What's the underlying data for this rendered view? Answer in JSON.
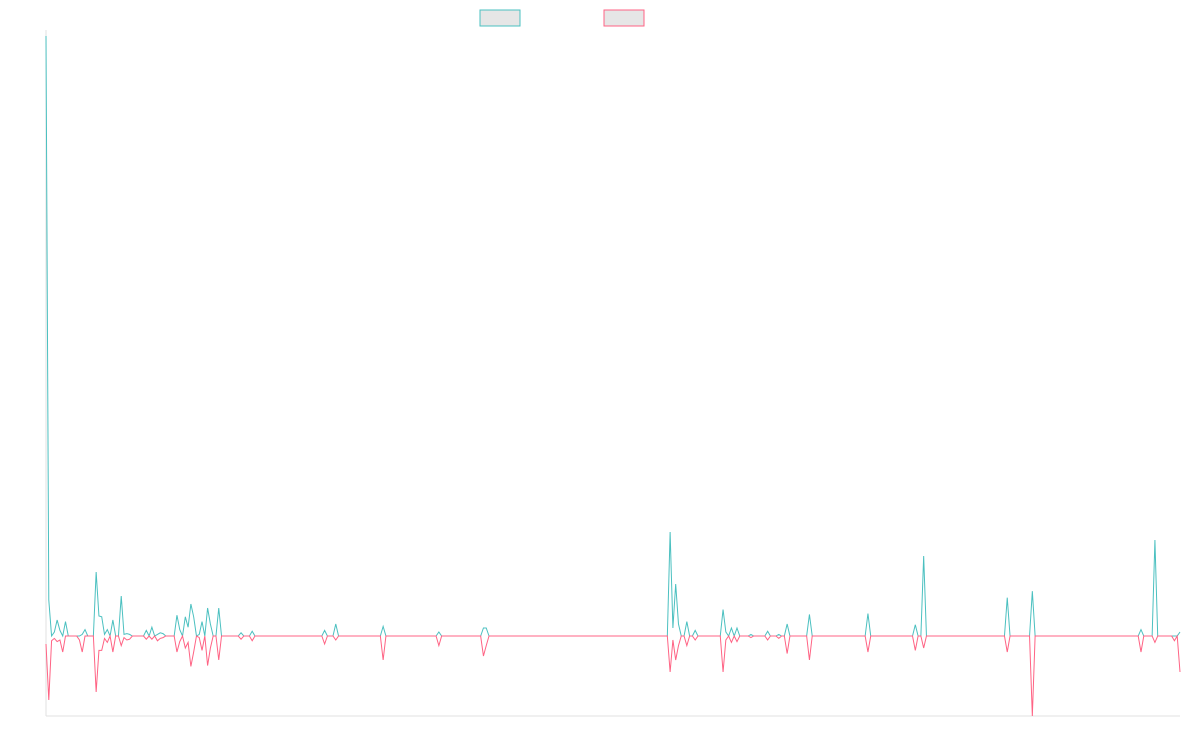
{
  "chart_data": {
    "type": "line",
    "title": "",
    "xlabel": "",
    "ylabel": "",
    "grid": false,
    "legend": "top-center",
    "ylim": [
      -1.0,
      7.5
    ],
    "series": [
      {
        "color": "#4bc0c0",
        "fill": "#e6e6e6",
        "values": [
          7.5,
          0.45,
          0.0,
          0.05,
          0.2,
          0.07,
          0.0,
          0.18,
          0.0,
          0.0,
          0.0,
          0.0,
          0.0,
          0.02,
          0.08,
          0.0,
          0.0,
          0.0,
          0.8,
          0.25,
          0.24,
          0.02,
          0.08,
          0.0,
          0.2,
          0.0,
          0.0,
          0.5,
          0.02,
          0.03,
          0.02,
          0.0,
          0.0,
          0.0,
          0.0,
          0.0,
          0.07,
          0.0,
          0.11,
          0.0,
          0.02,
          0.04,
          0.03,
          0.0,
          0.0,
          0.0,
          0.0,
          0.26,
          0.08,
          0.0,
          0.24,
          0.11,
          0.4,
          0.24,
          0.0,
          0.02,
          0.18,
          0.0,
          0.35,
          0.15,
          0.0,
          0.0,
          0.35,
          0.0,
          0.0,
          0.0,
          0.0,
          0.0,
          0.0,
          0.0,
          0.04,
          0.0,
          0.0,
          0.0,
          0.06,
          0.0,
          0.0,
          0.0,
          0.0,
          0.0,
          0.0,
          0.0,
          0.0,
          0.0,
          0.0,
          0.0,
          0.0,
          0.0,
          0.0,
          0.0,
          0.0,
          0.0,
          0.0,
          0.0,
          0.0,
          0.0,
          0.0,
          0.0,
          0.0,
          0.0,
          0.07,
          0.0,
          0.0,
          0.0,
          0.15,
          0.0,
          0.0,
          0.0,
          0.0,
          0.0,
          0.0,
          0.0,
          0.0,
          0.0,
          0.0,
          0.0,
          0.0,
          0.0,
          0.0,
          0.0,
          0.0,
          0.12,
          0.0,
          0.0,
          0.0,
          0.0,
          0.0,
          0.0,
          0.0,
          0.0,
          0.0,
          0.0,
          0.0,
          0.0,
          0.0,
          0.0,
          0.0,
          0.0,
          0.0,
          0.0,
          0.0,
          0.05,
          0.0,
          0.0,
          0.0,
          0.0,
          0.0,
          0.0,
          0.0,
          0.0,
          0.0,
          0.0,
          0.0,
          0.0,
          0.0,
          0.0,
          0.0,
          0.1,
          0.1,
          0.0,
          0.0,
          0.0,
          0.0,
          0.0,
          0.0,
          0.0,
          0.0,
          0.0,
          0.0,
          0.0,
          0.0,
          0.0,
          0.0,
          0.0,
          0.0,
          0.0,
          0.0,
          0.0,
          0.0,
          0.0,
          0.0,
          0.0,
          0.0,
          0.0,
          0.0,
          0.0,
          0.0,
          0.0,
          0.0,
          0.0,
          0.0,
          0.0,
          0.0,
          0.0,
          0.0,
          0.0,
          0.0,
          0.0,
          0.0,
          0.0,
          0.0,
          0.0,
          0.0,
          0.0,
          0.0,
          0.0,
          0.0,
          0.0,
          0.0,
          0.0,
          0.0,
          0.0,
          0.0,
          0.0,
          0.0,
          0.0,
          0.0,
          0.0,
          0.0,
          0.0,
          0.0,
          0.0,
          0.0,
          0.0,
          1.3,
          0.1,
          0.65,
          0.15,
          0.0,
          0.0,
          0.18,
          0.0,
          0.0,
          0.07,
          0.0,
          0.0,
          0.0,
          0.0,
          0.0,
          0.0,
          0.0,
          0.0,
          0.0,
          0.33,
          0.05,
          0.0,
          0.1,
          0.0,
          0.1,
          0.0,
          0.0,
          0.0,
          0.0,
          0.02,
          0.0,
          0.0,
          0.0,
          0.0,
          0.0,
          0.06,
          0.0,
          0.0,
          0.0,
          0.02,
          0.0,
          0.0,
          0.15,
          0.0,
          0.0,
          0.0,
          0.0,
          0.0,
          0.0,
          0.0,
          0.27,
          0.0,
          0.0,
          0.0,
          0.0,
          0.0,
          0.0,
          0.0,
          0.0,
          0.0,
          0.0,
          0.0,
          0.0,
          0.0,
          0.0,
          0.0,
          0.0,
          0.0,
          0.0,
          0.0,
          0.0,
          0.28,
          0.0,
          0.0,
          0.0,
          0.0,
          0.0,
          0.0,
          0.0,
          0.0,
          0.0,
          0.0,
          0.0,
          0.0,
          0.0,
          0.0,
          0.0,
          0.0,
          0.14,
          0.0,
          0.0,
          1.0,
          0.0,
          0.0,
          0.0,
          0.0,
          0.0,
          0.0,
          0.0,
          0.0,
          0.0,
          0.0,
          0.0,
          0.0,
          0.0,
          0.0,
          0.0,
          0.0,
          0.0,
          0.0,
          0.0,
          0.0,
          0.0,
          0.0,
          0.0,
          0.0,
          0.0,
          0.0,
          0.0,
          0.0,
          0.0,
          0.48,
          0.0,
          0.0,
          0.0,
          0.0,
          0.0,
          0.0,
          0.0,
          0.0,
          0.56,
          0.0,
          0.0,
          0.0,
          0.0,
          0.0,
          0.0,
          0.0,
          0.0,
          0.0,
          0.0,
          0.0,
          0.0,
          0.0,
          0.0,
          0.0,
          0.0,
          0.0,
          0.0,
          0.0,
          0.0,
          0.0,
          0.0,
          0.0,
          0.0,
          0.0,
          0.0,
          0.0,
          0.0,
          0.0,
          0.0,
          0.0,
          0.0,
          0.0,
          0.0,
          0.0,
          0.0,
          0.0,
          0.0,
          0.08,
          0.0,
          0.0,
          0.0,
          0.0,
          1.2,
          0.0,
          0.0,
          0.0,
          0.0,
          0.0,
          0.0,
          0.0,
          0.0,
          0.05
        ]
      },
      {
        "color": "#ff6384",
        "fill": "#e6e6e6",
        "values": [
          -0.1,
          -0.8,
          -0.06,
          -0.03,
          -0.07,
          -0.05,
          -0.2,
          0.0,
          0.0,
          0.0,
          0.0,
          0.0,
          -0.05,
          -0.2,
          0.0,
          0.0,
          0.0,
          0.0,
          -0.7,
          -0.18,
          -0.18,
          -0.03,
          -0.08,
          0.0,
          -0.2,
          0.0,
          0.0,
          -0.12,
          -0.02,
          -0.05,
          -0.04,
          0.0,
          0.0,
          0.0,
          0.0,
          0.0,
          -0.04,
          0.0,
          -0.04,
          0.0,
          -0.06,
          -0.03,
          -0.02,
          0.0,
          0.0,
          0.0,
          0.0,
          -0.2,
          -0.07,
          0.0,
          -0.15,
          -0.08,
          -0.38,
          -0.2,
          0.0,
          -0.02,
          -0.18,
          0.0,
          -0.37,
          -0.15,
          0.0,
          0.0,
          -0.3,
          0.0,
          0.0,
          0.0,
          0.0,
          0.0,
          0.0,
          0.0,
          -0.04,
          0.0,
          0.0,
          0.0,
          -0.06,
          0.0,
          0.0,
          0.0,
          0.0,
          0.0,
          0.0,
          0.0,
          0.0,
          0.0,
          0.0,
          0.0,
          0.0,
          0.0,
          0.0,
          0.0,
          0.0,
          0.0,
          0.0,
          0.0,
          0.0,
          0.0,
          0.0,
          0.0,
          0.0,
          0.0,
          -0.1,
          0.0,
          0.0,
          0.0,
          -0.05,
          0.0,
          0.0,
          0.0,
          0.0,
          0.0,
          0.0,
          0.0,
          0.0,
          0.0,
          0.0,
          0.0,
          0.0,
          0.0,
          0.0,
          0.0,
          0.0,
          -0.3,
          0.0,
          0.0,
          0.0,
          0.0,
          0.0,
          0.0,
          0.0,
          0.0,
          0.0,
          0.0,
          0.0,
          0.0,
          0.0,
          0.0,
          0.0,
          0.0,
          0.0,
          0.0,
          0.0,
          -0.12,
          0.0,
          0.0,
          0.0,
          0.0,
          0.0,
          0.0,
          0.0,
          0.0,
          0.0,
          0.0,
          0.0,
          0.0,
          0.0,
          0.0,
          0.0,
          -0.25,
          -0.12,
          0.0,
          0.0,
          0.0,
          0.0,
          0.0,
          0.0,
          0.0,
          0.0,
          0.0,
          0.0,
          0.0,
          0.0,
          0.0,
          0.0,
          0.0,
          0.0,
          0.0,
          0.0,
          0.0,
          0.0,
          0.0,
          0.0,
          0.0,
          0.0,
          0.0,
          0.0,
          0.0,
          0.0,
          0.0,
          0.0,
          0.0,
          0.0,
          0.0,
          0.0,
          0.0,
          0.0,
          0.0,
          0.0,
          0.0,
          0.0,
          0.0,
          0.0,
          0.0,
          0.0,
          0.0,
          0.0,
          0.0,
          0.0,
          0.0,
          0.0,
          0.0,
          0.0,
          0.0,
          0.0,
          0.0,
          0.0,
          0.0,
          0.0,
          0.0,
          0.0,
          0.0,
          0.0,
          0.0,
          0.0,
          0.0,
          -0.45,
          -0.05,
          -0.3,
          -0.12,
          0.0,
          0.0,
          -0.12,
          0.0,
          0.0,
          -0.05,
          0.0,
          0.0,
          0.0,
          0.0,
          0.0,
          0.0,
          0.0,
          0.0,
          0.0,
          -0.45,
          -0.05,
          0.0,
          -0.08,
          0.0,
          -0.07,
          0.0,
          0.0,
          0.0,
          0.0,
          -0.02,
          0.0,
          0.0,
          0.0,
          0.0,
          0.0,
          -0.05,
          0.0,
          0.0,
          0.0,
          -0.03,
          0.0,
          0.0,
          -0.22,
          0.0,
          0.0,
          0.0,
          0.0,
          0.0,
          0.0,
          0.0,
          -0.3,
          0.0,
          0.0,
          0.0,
          0.0,
          0.0,
          0.0,
          0.0,
          0.0,
          0.0,
          0.0,
          0.0,
          0.0,
          0.0,
          0.0,
          0.0,
          0.0,
          0.0,
          0.0,
          0.0,
          0.0,
          -0.2,
          0.0,
          0.0,
          0.0,
          0.0,
          0.0,
          0.0,
          0.0,
          0.0,
          0.0,
          0.0,
          0.0,
          0.0,
          0.0,
          0.0,
          0.0,
          0.0,
          -0.18,
          0.0,
          0.0,
          -0.15,
          0.0,
          0.0,
          0.0,
          0.0,
          0.0,
          0.0,
          0.0,
          0.0,
          0.0,
          0.0,
          0.0,
          0.0,
          0.0,
          0.0,
          0.0,
          0.0,
          0.0,
          0.0,
          0.0,
          0.0,
          0.0,
          0.0,
          0.0,
          0.0,
          0.0,
          0.0,
          0.0,
          0.0,
          0.0,
          -0.2,
          0.0,
          0.0,
          0.0,
          0.0,
          0.0,
          0.0,
          0.0,
          0.0,
          -1.0,
          0.0,
          0.0,
          0.0,
          0.0,
          0.0,
          0.0,
          0.0,
          0.0,
          0.0,
          0.0,
          0.0,
          0.0,
          0.0,
          0.0,
          0.0,
          0.0,
          0.0,
          0.0,
          0.0,
          0.0,
          0.0,
          0.0,
          0.0,
          0.0,
          0.0,
          0.0,
          0.0,
          0.0,
          0.0,
          0.0,
          0.0,
          0.0,
          0.0,
          0.0,
          0.0,
          0.0,
          0.0,
          0.0,
          -0.2,
          0.0,
          0.0,
          0.0,
          0.0,
          -0.08,
          0.0,
          0.0,
          0.0,
          0.0,
          0.0,
          0.0,
          -0.06,
          0.0,
          -0.45
        ]
      }
    ]
  }
}
